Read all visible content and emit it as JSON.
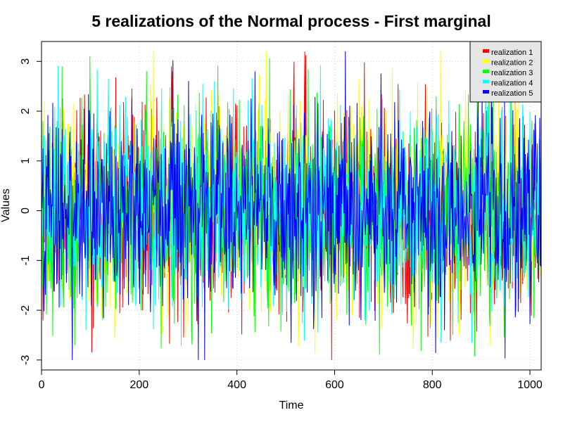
{
  "chart_data": {
    "type": "line",
    "title": "5 realizations of the Normal process - First marginal",
    "xlabel": "Time",
    "ylabel": "Values",
    "xlim": [
      -0.05,
      1023
    ],
    "ylim": [
      -3.2,
      3.4
    ],
    "xticks": [
      0,
      200,
      400,
      600,
      800,
      1000
    ],
    "yticks": [
      -3,
      -2,
      -1,
      0,
      1,
      2,
      3
    ],
    "xtick_labels": [
      "0",
      "200",
      "400",
      "600",
      "800",
      "1000"
    ],
    "ytick_labels": [
      "-3",
      "-2",
      "-1",
      "0",
      "1",
      "2",
      "3"
    ],
    "grid": true,
    "legend_position": "top-right",
    "n_points": 1024,
    "series": [
      {
        "name": "realization 1",
        "color": "#ff0000",
        "seed": 11
      },
      {
        "name": "realization 2",
        "color": "#ffff00",
        "seed": 23
      },
      {
        "name": "realization 3",
        "color": "#00ff00",
        "seed": 37
      },
      {
        "name": "realization 4",
        "color": "#00ffff",
        "seed": 51
      },
      {
        "name": "realization 5",
        "color": "#0000ff",
        "seed": 73
      }
    ]
  }
}
